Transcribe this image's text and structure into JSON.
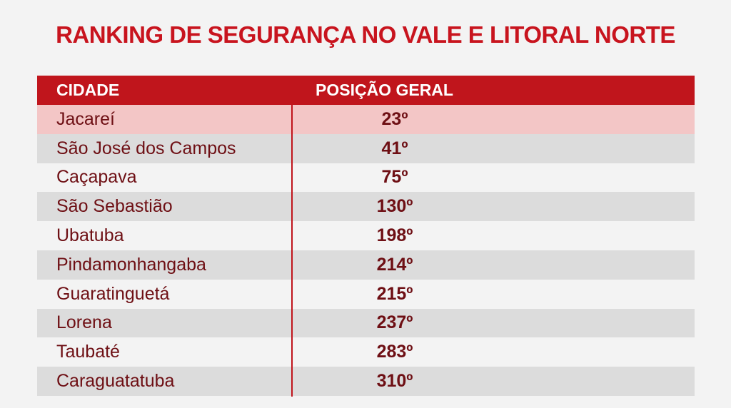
{
  "title": "RANKING DE SEGURANÇA NO VALE E LITORAL NORTE",
  "table": {
    "header": [
      "CIDADE",
      "POSIÇÃO GERAL"
    ],
    "rows": [
      [
        "Jacareí",
        "23º"
      ],
      [
        "São José dos Campos",
        "41º"
      ],
      [
        "Caçapava",
        "75º"
      ],
      [
        "São Sebastião",
        "130º"
      ],
      [
        "Ubatuba",
        "198º"
      ],
      [
        "Pindamonhangaba",
        "214º"
      ],
      [
        "Guaratinguetá",
        "215º"
      ],
      [
        "Lorena",
        "237º"
      ],
      [
        "Taubaté",
        "283º"
      ],
      [
        "Caraguatatuba",
        "310º"
      ]
    ]
  }
}
